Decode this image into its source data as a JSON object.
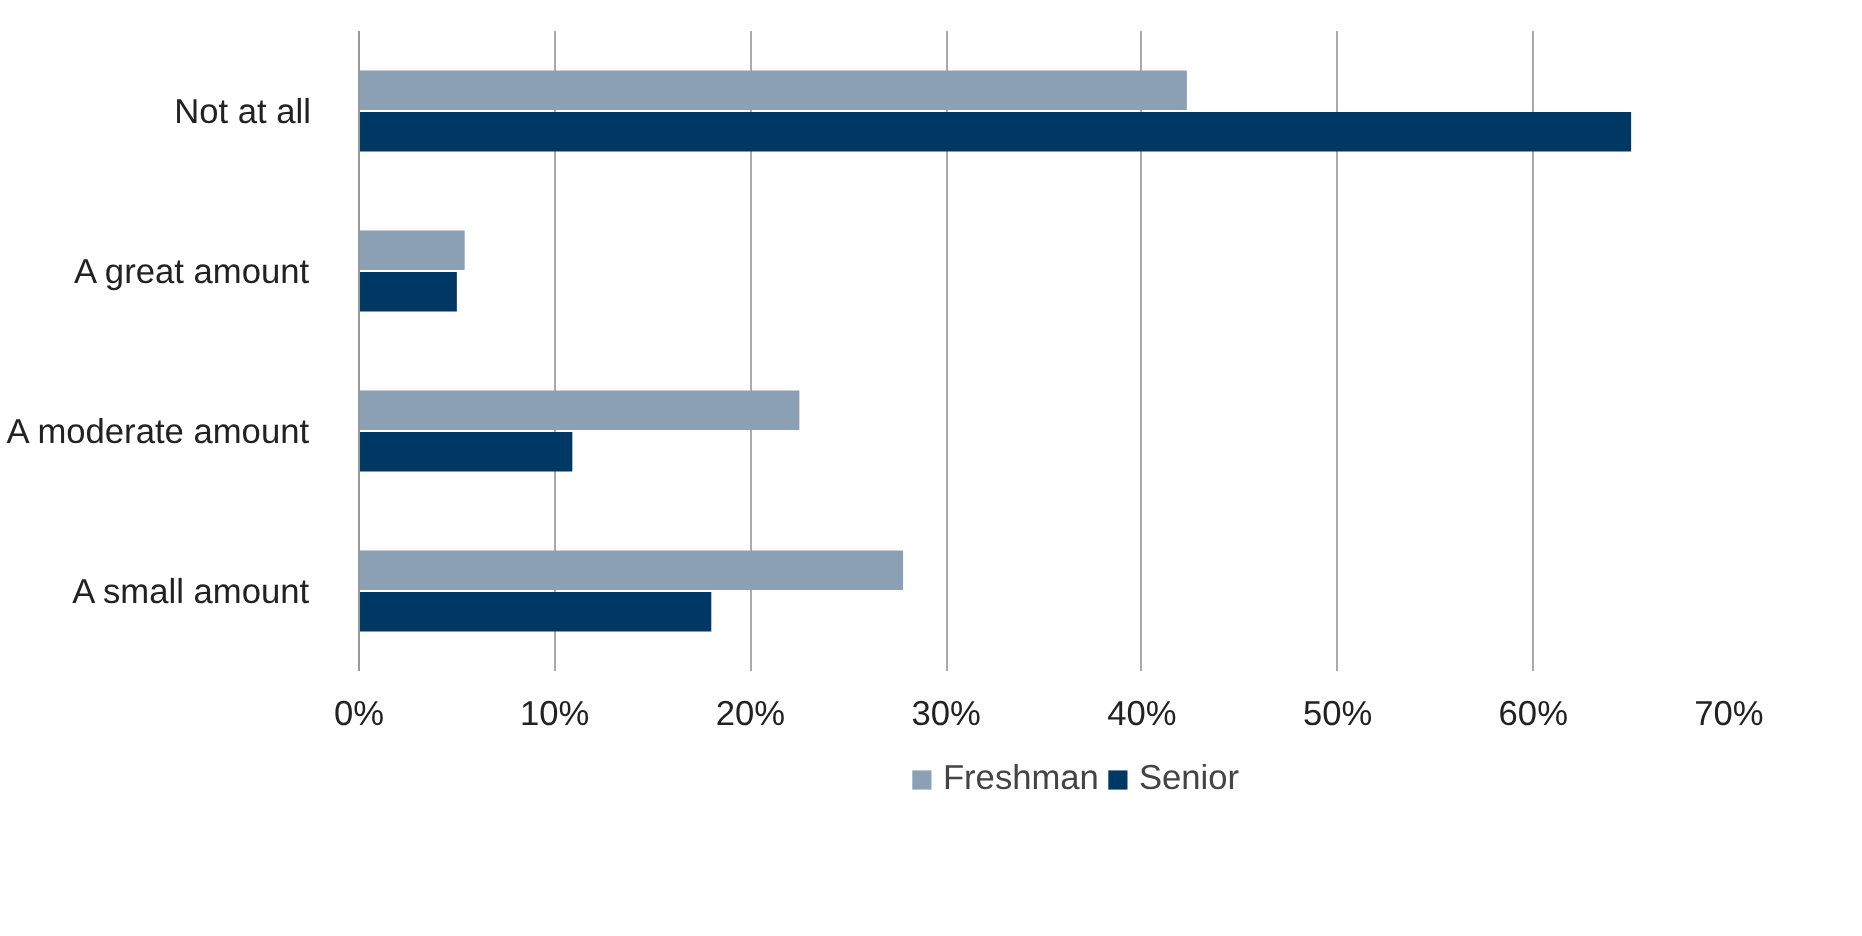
{
  "chart_data": {
    "type": "bar",
    "orientation": "horizontal",
    "categories": [
      "Not at all",
      "A great amount",
      "A moderate amount",
      "A small amount"
    ],
    "series": [
      {
        "name": "Freshman",
        "color": "#8ba0b5",
        "values": [
          42.3,
          5.4,
          22.5,
          27.8
        ]
      },
      {
        "name": "Senior",
        "color": "#003865",
        "values": [
          65.0,
          5.0,
          10.9,
          18.0
        ]
      }
    ],
    "xlim": [
      0,
      70
    ],
    "xticks": [
      {
        "value": 0,
        "label": "0%"
      },
      {
        "value": 10,
        "label": "10%"
      },
      {
        "value": 20,
        "label": "20%"
      },
      {
        "value": 30,
        "label": "30%"
      },
      {
        "value": 40,
        "label": "40%"
      },
      {
        "value": 50,
        "label": "50%"
      },
      {
        "value": 60,
        "label": "60%"
      },
      {
        "value": 70,
        "label": "70%"
      }
    ],
    "grid": "x",
    "legend": "bottom"
  }
}
